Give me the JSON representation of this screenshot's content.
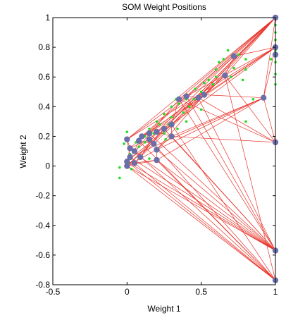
{
  "chart_data": {
    "type": "scatter",
    "title": "SOM Weight Positions",
    "xlabel": "Weight 1",
    "ylabel": "Weight 2",
    "xlim": [
      -0.5,
      1
    ],
    "ylim": [
      -0.8,
      1
    ],
    "x_ticks": [
      "-0.5",
      "0",
      "0.5",
      "1"
    ],
    "y_ticks": [
      "-0.8",
      "-0.6",
      "-0.4",
      "-0.2",
      "0",
      "0.2",
      "0.4",
      "0.6",
      "0.8",
      "1"
    ],
    "grid": false,
    "colors": {
      "data_points": "#22dd22",
      "neuron_weights": "#6b6fa8",
      "neighbor_links": "#e8332a",
      "axes": "#000000"
    },
    "series": [
      {
        "role": "data_points",
        "points": [
          [
            0.0,
            0.23
          ],
          [
            0.0,
            0.18
          ],
          [
            -0.02,
            0.15
          ],
          [
            -0.05,
            -0.01
          ],
          [
            -0.05,
            -0.08
          ],
          [
            0.03,
            0.05
          ],
          [
            0.05,
            0.1
          ],
          [
            0.1,
            0.19
          ],
          [
            0.15,
            0.25
          ],
          [
            0.2,
            0.3
          ],
          [
            0.25,
            0.35
          ],
          [
            0.3,
            0.4
          ],
          [
            0.33,
            0.45
          ],
          [
            0.4,
            0.45
          ],
          [
            0.45,
            0.45
          ],
          [
            0.5,
            0.5
          ],
          [
            0.55,
            0.58
          ],
          [
            0.6,
            0.65
          ],
          [
            0.65,
            0.72
          ],
          [
            0.7,
            0.6
          ],
          [
            0.75,
            0.75
          ],
          [
            0.8,
            0.72
          ],
          [
            0.8,
            0.65
          ],
          [
            0.85,
            0.45
          ],
          [
            0.8,
            0.3
          ],
          [
            0.62,
            0.7
          ],
          [
            0.58,
            0.55
          ],
          [
            0.5,
            0.38
          ],
          [
            0.42,
            0.4
          ],
          [
            0.35,
            0.42
          ],
          [
            0.25,
            0.22
          ],
          [
            0.28,
            0.28
          ],
          [
            0.22,
            0.28
          ],
          [
            0.18,
            0.22
          ],
          [
            0.12,
            0.16
          ],
          [
            0.08,
            0.13
          ],
          [
            0.06,
            0.16
          ],
          [
            0.02,
            0.08
          ],
          [
            0.12,
            0.2
          ],
          [
            0.3,
            0.33
          ],
          [
            0.38,
            0.36
          ],
          [
            0.46,
            0.52
          ],
          [
            0.52,
            0.56
          ],
          [
            0.66,
            0.62
          ],
          [
            0.72,
            0.66
          ],
          [
            0.78,
            0.58
          ],
          [
            0.68,
            0.78
          ],
          [
            0.6,
            0.6
          ],
          [
            1.0,
            1.0
          ],
          [
            1.0,
            0.95
          ],
          [
            1.0,
            0.9
          ],
          [
            1.0,
            0.85
          ],
          [
            1.0,
            0.78
          ],
          [
            1.0,
            0.7
          ],
          [
            1.0,
            0.62
          ],
          [
            1.0,
            0.55
          ],
          [
            0.99,
            0.75
          ],
          [
            0.97,
            0.72
          ],
          [
            0.01,
            0.02
          ],
          [
            0.03,
            -0.02
          ],
          [
            0.15,
            0.05
          ],
          [
            0.2,
            0.12
          ],
          [
            0.26,
            0.18
          ],
          [
            0.34,
            0.25
          ],
          [
            0.4,
            0.3
          ]
        ]
      },
      {
        "role": "neuron_weights",
        "points": [
          [
            0.0,
            0.0
          ],
          [
            0.0,
            0.03
          ],
          [
            0.02,
            0.06
          ],
          [
            0.0,
            0.18
          ],
          [
            0.02,
            0.12
          ],
          [
            0.05,
            0.1
          ],
          [
            0.08,
            0.17
          ],
          [
            0.1,
            0.2
          ],
          [
            0.15,
            0.22
          ],
          [
            0.2,
            0.23
          ],
          [
            0.25,
            0.25
          ],
          [
            0.3,
            0.28
          ],
          [
            0.2,
            0.11
          ],
          [
            0.18,
            0.15
          ],
          [
            0.15,
            0.18
          ],
          [
            0.3,
            0.2
          ],
          [
            0.35,
            0.45
          ],
          [
            0.4,
            0.47
          ],
          [
            0.48,
            0.46
          ],
          [
            0.52,
            0.48
          ],
          [
            0.66,
            0.61
          ],
          [
            0.72,
            0.74
          ],
          [
            0.92,
            0.46
          ],
          [
            1.0,
            1.0
          ],
          [
            1.0,
            0.8
          ],
          [
            1.0,
            0.75
          ],
          [
            1.0,
            0.16
          ],
          [
            1.0,
            -0.57
          ],
          [
            1.0,
            -0.77
          ],
          [
            0.2,
            0.04
          ],
          [
            0.05,
            0.02
          ],
          [
            0.09,
            0.06
          ]
        ]
      }
    ],
    "links": [
      [
        0,
        2
      ],
      [
        2,
        3
      ],
      [
        3,
        4
      ],
      [
        4,
        5
      ],
      [
        5,
        6
      ],
      [
        6,
        7
      ],
      [
        7,
        8
      ],
      [
        8,
        9
      ],
      [
        9,
        10
      ],
      [
        10,
        11
      ],
      [
        11,
        16
      ],
      [
        16,
        17
      ],
      [
        17,
        18
      ],
      [
        18,
        19
      ],
      [
        19,
        20
      ],
      [
        20,
        21
      ],
      [
        21,
        23
      ],
      [
        23,
        24
      ],
      [
        24,
        25
      ],
      [
        25,
        26
      ],
      [
        26,
        27
      ],
      [
        27,
        28
      ],
      [
        0,
        27
      ],
      [
        0,
        28
      ],
      [
        1,
        27
      ],
      [
        1,
        28
      ],
      [
        2,
        27
      ],
      [
        5,
        28
      ],
      [
        30,
        28
      ],
      [
        31,
        27
      ],
      [
        12,
        27
      ],
      [
        13,
        28
      ],
      [
        29,
        28
      ],
      [
        29,
        27
      ],
      [
        6,
        28
      ],
      [
        8,
        27
      ],
      [
        0,
        23
      ],
      [
        3,
        23
      ],
      [
        7,
        23
      ],
      [
        10,
        23
      ],
      [
        11,
        23
      ],
      [
        16,
        23
      ],
      [
        17,
        23
      ],
      [
        18,
        23
      ],
      [
        19,
        23
      ],
      [
        20,
        23
      ],
      [
        22,
        23
      ],
      [
        22,
        24
      ],
      [
        3,
        24
      ],
      [
        8,
        24
      ],
      [
        11,
        24
      ],
      [
        17,
        24
      ],
      [
        19,
        24
      ],
      [
        21,
        24
      ],
      [
        2,
        22
      ],
      [
        12,
        22
      ],
      [
        29,
        22
      ],
      [
        15,
        22
      ],
      [
        19,
        22
      ],
      [
        16,
        26
      ],
      [
        18,
        26
      ],
      [
        20,
        26
      ],
      [
        22,
        26
      ],
      [
        15,
        26
      ],
      [
        0,
        12
      ],
      [
        12,
        15
      ],
      [
        15,
        11
      ],
      [
        13,
        14
      ],
      [
        14,
        8
      ],
      [
        29,
        12
      ],
      [
        29,
        30
      ],
      [
        30,
        1
      ],
      [
        31,
        5
      ],
      [
        31,
        13
      ],
      [
        1,
        4
      ],
      [
        4,
        14
      ],
      [
        9,
        15
      ],
      [
        6,
        13
      ],
      [
        0,
        29
      ],
      [
        17,
        27
      ],
      [
        15,
        27
      ],
      [
        11,
        28
      ],
      [
        16,
        27
      ],
      [
        20,
        28
      ],
      [
        10,
        27
      ],
      [
        18,
        27
      ],
      [
        2,
        16
      ],
      [
        3,
        17
      ],
      [
        5,
        18
      ],
      [
        7,
        19
      ],
      [
        1,
        11
      ],
      [
        30,
        10
      ],
      [
        31,
        9
      ],
      [
        0,
        20
      ],
      [
        4,
        21
      ],
      [
        6,
        20
      ],
      [
        12,
        19
      ],
      [
        13,
        20
      ],
      [
        14,
        21
      ]
    ]
  }
}
